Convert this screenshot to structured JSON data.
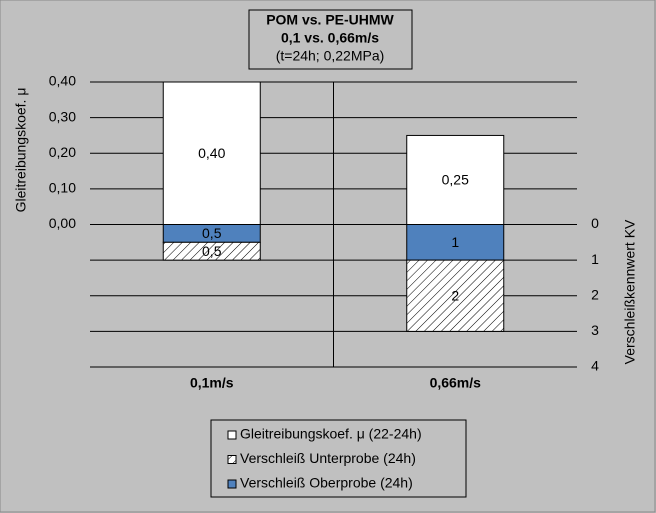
{
  "chart_data": {
    "type": "bar",
    "title": [
      "POM vs. PE-UHMW",
      "0,1 vs. 0,66m/s",
      "(t=24h;  0,22MPa)"
    ],
    "y_label": "Gleitreibungskoef.  μ",
    "y2_label": "Verschleißkennwert  KV",
    "categories": [
      "0,1m/s",
      "0,66m/s"
    ],
    "series": [
      {
        "name": "Gleitreibungskoef. μ (22-24h)",
        "color": "#ffffff",
        "values": [
          0.4,
          0.25
        ],
        "value_labels": [
          "0,40",
          "0,25"
        ]
      },
      {
        "name": "Verschleiß Unterprobe (24h)",
        "color": "hatch",
        "axis": "y2",
        "values": [
          0.5,
          2
        ],
        "value_labels": [
          "0,5",
          "2"
        ]
      },
      {
        "name": "Verschleiß Oberprobe (24h)",
        "color": "#4f81bd",
        "axis": "y2",
        "values": [
          0.5,
          1
        ],
        "value_labels": [
          "0,5",
          "1"
        ]
      }
    ],
    "ylim": [
      -0.4,
      0.4
    ],
    "yticks": [
      {
        "value": 0,
        "label": "0,00"
      },
      {
        "value": 0.1,
        "label": "0,10"
      },
      {
        "value": 0.2,
        "label": "0,20"
      },
      {
        "value": 0.3,
        "label": "0,30"
      },
      {
        "value": 0.4,
        "label": "0,40"
      }
    ],
    "y2lim": [
      4,
      -4
    ],
    "y2ticks": [
      0,
      1,
      2,
      3,
      4
    ],
    "grid": true
  }
}
